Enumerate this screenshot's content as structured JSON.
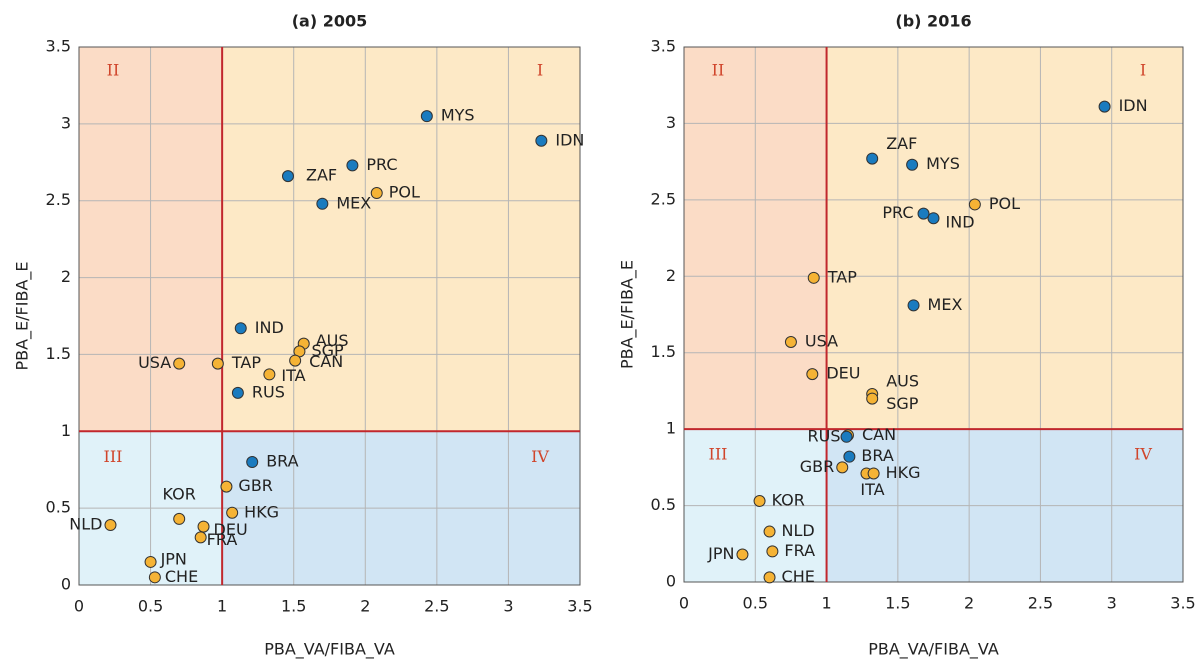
{
  "chart_data": [
    {
      "type": "scatter",
      "title": "(a) 2005",
      "x_label": "PBA_VA/FIBA_VA",
      "y_label": "PBA_E/FIBA_E",
      "xlim": [
        0,
        3.5
      ],
      "ylim": [
        0,
        3.5
      ],
      "xticks": [
        0,
        0.5,
        1,
        1.5,
        2,
        2.5,
        3,
        3.5
      ],
      "yticks": [
        0,
        0.5,
        1,
        1.5,
        2,
        2.5,
        3,
        3.5
      ],
      "grid": true,
      "reference_x": 1,
      "reference_y": 1,
      "quadrant_labels": [
        "I",
        "II",
        "III",
        "IV"
      ],
      "series": [
        {
          "color": "#f5b335",
          "labels": [
            "POL",
            "AUS",
            "SGP",
            "CAN",
            "ITA",
            "TAP",
            "USA",
            "GBR",
            "HKG",
            "KOR",
            "DEU",
            "FRA",
            "NLD",
            "JPN",
            "CHE"
          ],
          "x": [
            2.08,
            1.57,
            1.54,
            1.51,
            1.33,
            0.97,
            0.7,
            1.03,
            1.07,
            0.7,
            0.87,
            0.85,
            0.22,
            0.5,
            0.53
          ],
          "values": [
            2.55,
            1.57,
            1.52,
            1.46,
            1.37,
            1.44,
            1.44,
            0.64,
            0.47,
            0.43,
            0.38,
            0.31,
            0.39,
            0.15,
            0.05
          ]
        },
        {
          "color": "#1a7bbf",
          "labels": [
            "MYS",
            "IDN",
            "PRC",
            "ZAF",
            "MEX",
            "IND",
            "RUS",
            "BRA"
          ],
          "x": [
            2.43,
            3.23,
            1.91,
            1.46,
            1.7,
            1.13,
            1.11,
            1.21
          ],
          "values": [
            3.05,
            2.89,
            2.73,
            2.66,
            2.48,
            1.67,
            1.25,
            0.8
          ]
        }
      ]
    },
    {
      "type": "scatter",
      "title": "(b) 2016",
      "x_label": "PBA_VA/FIBA_VA",
      "y_label": "PBA_E/FIBA_E",
      "xlim": [
        0,
        3.5
      ],
      "ylim": [
        0,
        3.5
      ],
      "xticks": [
        0,
        0.5,
        1,
        1.5,
        2,
        2.5,
        3,
        3.5
      ],
      "yticks": [
        0,
        0.5,
        1,
        1.5,
        2,
        2.5,
        3,
        3.5
      ],
      "grid": true,
      "reference_x": 1,
      "reference_y": 1,
      "quadrant_labels": [
        "I",
        "II",
        "III",
        "IV"
      ],
      "series": [
        {
          "color": "#f5b335",
          "labels": [
            "POL",
            "TAP",
            "USA",
            "DEU",
            "AUS",
            "SGP",
            "CAN",
            "GBR",
            "ITA",
            "HKG",
            "KOR",
            "NLD",
            "FRA",
            "JPN",
            "CHE"
          ],
          "x": [
            2.04,
            0.91,
            0.75,
            0.9,
            1.32,
            1.32,
            1.15,
            1.11,
            1.28,
            1.33,
            0.53,
            0.6,
            0.62,
            0.41,
            0.6
          ],
          "values": [
            2.47,
            1.99,
            1.57,
            1.36,
            1.23,
            1.2,
            0.96,
            0.75,
            0.71,
            0.71,
            0.53,
            0.33,
            0.2,
            0.18,
            0.03
          ]
        },
        {
          "color": "#1a7bbf",
          "labels": [
            "IDN",
            "ZAF",
            "MYS",
            "PRC",
            "IND",
            "MEX",
            "RUS",
            "BRA"
          ],
          "x": [
            2.95,
            1.32,
            1.6,
            1.68,
            1.75,
            1.61,
            1.14,
            1.16
          ],
          "values": [
            3.11,
            2.77,
            2.73,
            2.41,
            2.38,
            1.81,
            0.95,
            0.82
          ]
        }
      ]
    }
  ]
}
